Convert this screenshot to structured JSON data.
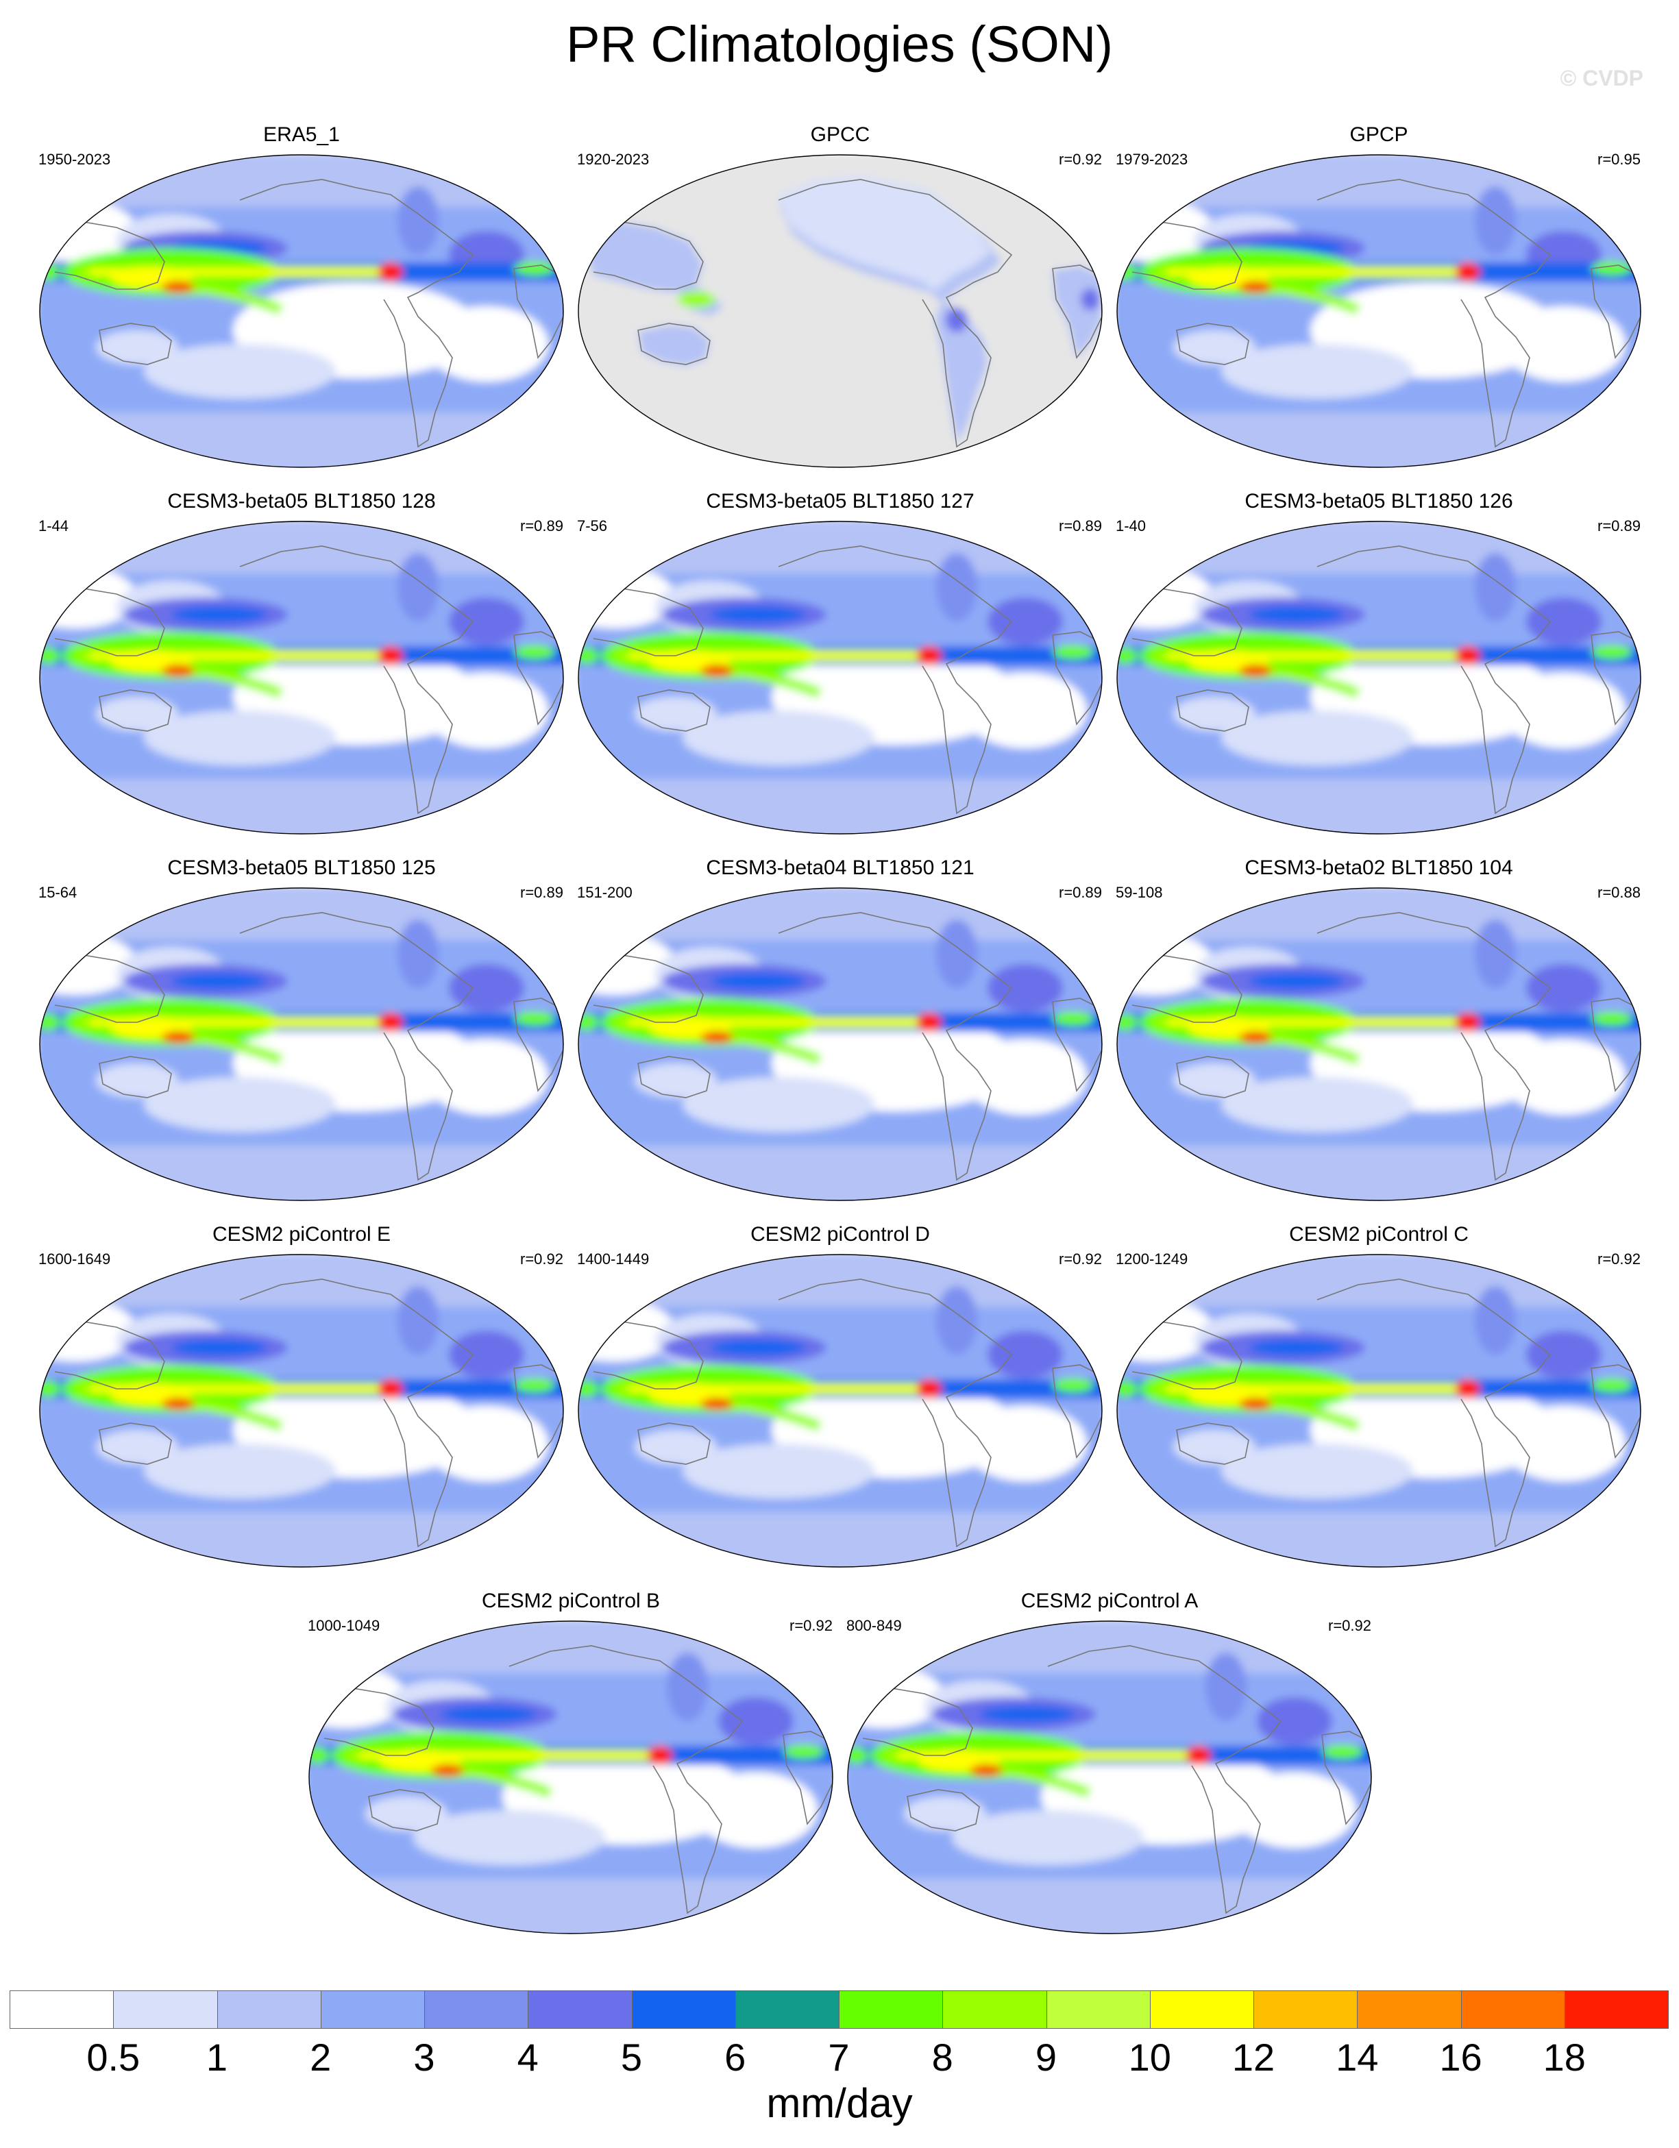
{
  "title": "PR Climatologies (SON)",
  "watermark": "© CVDP",
  "colors": {
    "levels": [
      "#ffffff",
      "#d8e0fa",
      "#b4c2f5",
      "#8eaaf7",
      "#7c90f0",
      "#6a70ea",
      "#1463f0",
      "#119b8a",
      "#66ff00",
      "#99ff00",
      "#c0ff3c",
      "#ffff00",
      "#ffbf00",
      "#ff8f00",
      "#ff7200",
      "#ff1f00"
    ],
    "ocean_mask": "#e6e6e6",
    "coastline": "#777777"
  },
  "colorbar": {
    "ticks": [
      "0.5",
      "1",
      "2",
      "3",
      "4",
      "5",
      "6",
      "7",
      "8",
      "9",
      "10",
      "12",
      "14",
      "16",
      "18"
    ],
    "units": "mm/day"
  },
  "panels": [
    {
      "title": "ERA5_1",
      "years": "1950-2023",
      "r": "",
      "style": "obs"
    },
    {
      "title": "GPCC",
      "years": "1920-2023",
      "r": "r=0.92",
      "style": "land"
    },
    {
      "title": "GPCP",
      "years": "1979-2023",
      "r": "r=0.95",
      "style": "obs"
    },
    {
      "title": "CESM3-beta05 BLT1850 128",
      "years": "1-44",
      "r": "r=0.89",
      "style": "model"
    },
    {
      "title": "CESM3-beta05 BLT1850 127",
      "years": "7-56",
      "r": "r=0.89",
      "style": "model"
    },
    {
      "title": "CESM3-beta05 BLT1850 126",
      "years": "1-40",
      "r": "r=0.89",
      "style": "model"
    },
    {
      "title": "CESM3-beta05 BLT1850 125",
      "years": "15-64",
      "r": "r=0.89",
      "style": "model"
    },
    {
      "title": "CESM3-beta04 BLT1850 121",
      "years": "151-200",
      "r": "r=0.89",
      "style": "model"
    },
    {
      "title": "CESM3-beta02 BLT1850 104",
      "years": "59-108",
      "r": "r=0.88",
      "style": "model"
    },
    {
      "title": "CESM2 piControl E",
      "years": "1600-1649",
      "r": "r=0.92",
      "style": "model"
    },
    {
      "title": "CESM2 piControl D",
      "years": "1400-1449",
      "r": "r=0.92",
      "style": "model"
    },
    {
      "title": "CESM2 piControl C",
      "years": "1200-1249",
      "r": "r=0.92",
      "style": "model"
    },
    {
      "title": "CESM2 piControl B",
      "years": "1000-1049",
      "r": "r=0.92",
      "style": "model"
    },
    {
      "title": "CESM2 piControl A",
      "years": "800-849",
      "r": "r=0.92",
      "style": "model"
    }
  ]
}
